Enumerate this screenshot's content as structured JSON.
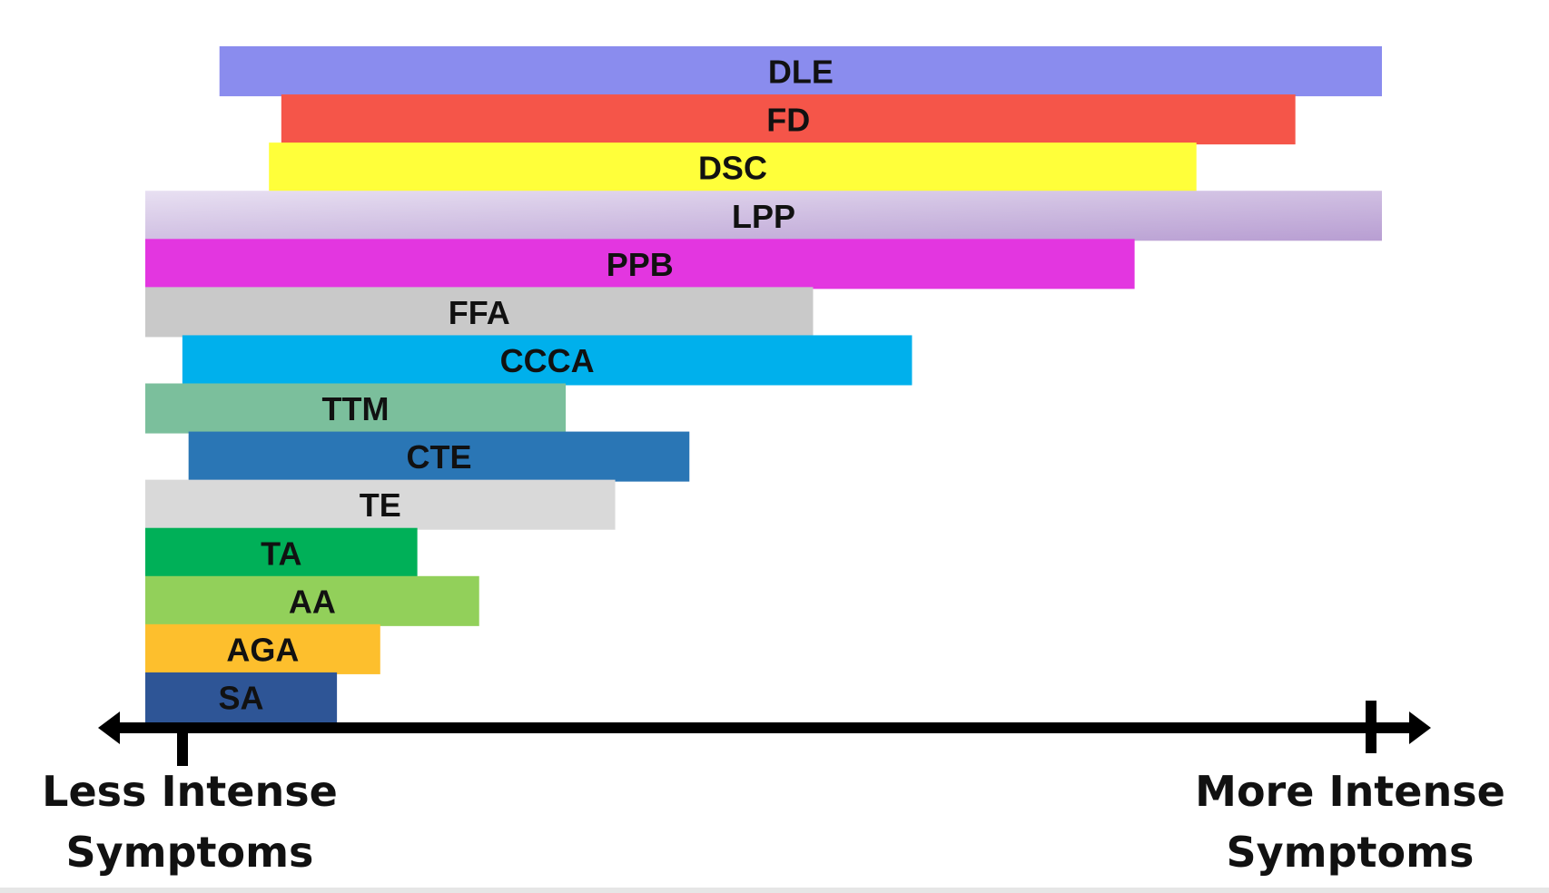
{
  "chart_data": {
    "type": "bar",
    "orientation": "horizontal-range",
    "axis": {
      "left_label": [
        "Less Intense",
        "Symptoms"
      ],
      "right_label": [
        "More Intense",
        "Symptoms"
      ],
      "range": [
        0,
        100
      ]
    },
    "bars": [
      {
        "label": "DLE",
        "start": 6,
        "end": 100,
        "color": "#8a8cee"
      },
      {
        "label": "FD",
        "start": 11,
        "end": 93,
        "color": "#f55549"
      },
      {
        "label": "DSC",
        "start": 10,
        "end": 85,
        "color": "#ffff3a"
      },
      {
        "label": "LPP",
        "start": 0,
        "end": 100,
        "color": "#cbbcdc",
        "gradient": [
          "#e8e0f2",
          "#b89ed2"
        ]
      },
      {
        "label": "PPB",
        "start": 0,
        "end": 80,
        "color": "#e336e0"
      },
      {
        "label": "FFA",
        "start": 0,
        "end": 54,
        "color": "#c9c9c9"
      },
      {
        "label": "CCCA",
        "start": 3,
        "end": 62,
        "color": "#00b0ec"
      },
      {
        "label": "TTM",
        "start": 0,
        "end": 34,
        "color": "#7bbf9c"
      },
      {
        "label": "CTE",
        "start": 3.5,
        "end": 44,
        "color": "#2a76b5"
      },
      {
        "label": "TE",
        "start": 0,
        "end": 38,
        "color": "#d9d9d9"
      },
      {
        "label": "TA",
        "start": 0,
        "end": 22,
        "color": "#00b058"
      },
      {
        "label": "AA",
        "start": 0,
        "end": 27,
        "color": "#92d05a"
      },
      {
        "label": "AGA",
        "start": 0,
        "end": 19,
        "color": "#fdbf2d"
      },
      {
        "label": "SA",
        "start": 0,
        "end": 15.5,
        "color": "#2e5596"
      }
    ]
  }
}
